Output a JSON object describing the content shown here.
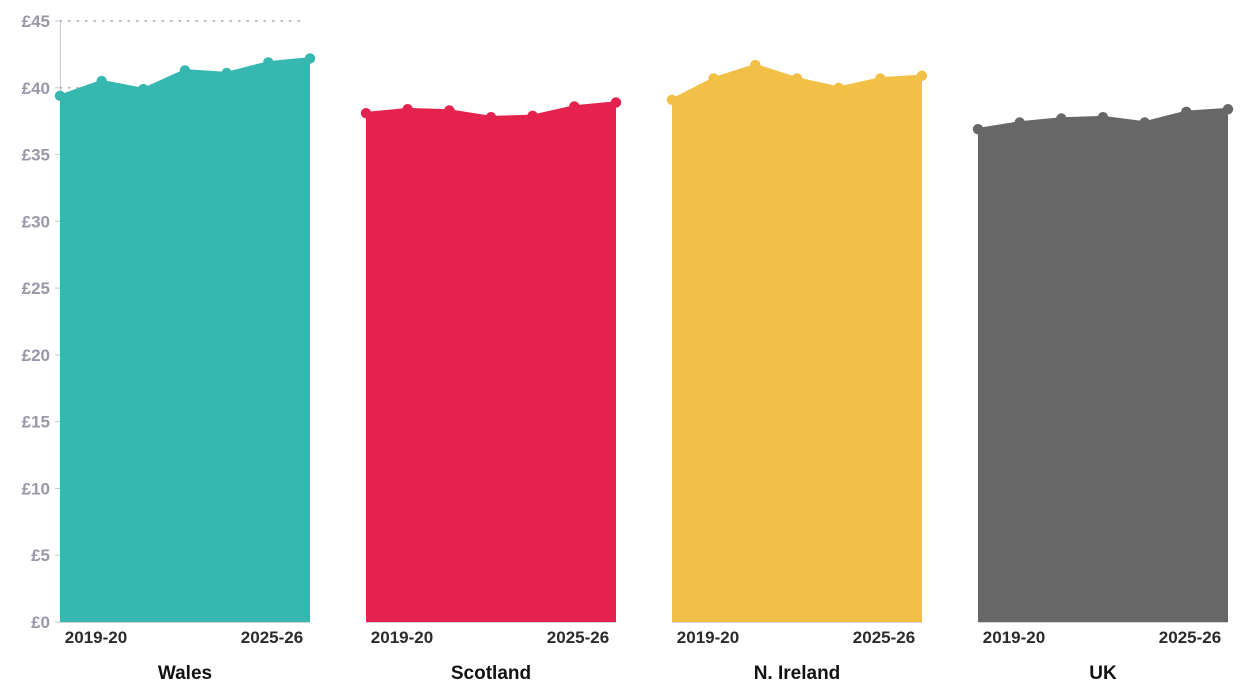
{
  "chart_data": {
    "type": "area",
    "y_axis": {
      "range": [
        0,
        45
      ],
      "ticks": [
        0,
        5,
        10,
        15,
        20,
        25,
        30,
        35,
        40,
        45
      ],
      "tick_labels": [
        "£0",
        "£5",
        "£10",
        "£15",
        "£20",
        "£25",
        "£30",
        "£35",
        "£40",
        "£45"
      ]
    },
    "x_tick_labels": [
      "2019-20",
      "2025-26"
    ],
    "panels": [
      {
        "title": "Wales",
        "color": "#36b8b1",
        "values": [
          39.4,
          40.5,
          39.9,
          41.3,
          41.1,
          41.9,
          42.2
        ]
      },
      {
        "title": "Scotland",
        "color": "#e5224d",
        "values": [
          38.1,
          38.4,
          38.3,
          37.8,
          37.9,
          38.6,
          38.9
        ]
      },
      {
        "title": "N. Ireland",
        "color": "#f2c046",
        "values": [
          39.1,
          40.7,
          41.7,
          40.7,
          40.0,
          40.7,
          40.9
        ]
      },
      {
        "title": "UK",
        "color": "#676767",
        "values": [
          36.9,
          37.4,
          37.7,
          37.8,
          37.4,
          38.2,
          38.4
        ]
      }
    ]
  }
}
